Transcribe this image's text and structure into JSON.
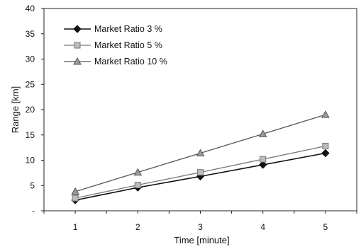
{
  "chart_data": {
    "type": "line",
    "title": "",
    "xlabel": "Time [minute]",
    "ylabel": "Range [km]",
    "x": [
      1,
      2,
      3,
      4,
      5
    ],
    "xlim": [
      0.5,
      5.5
    ],
    "ylim": [
      0,
      40
    ],
    "x_ticks": [
      "1",
      "2",
      "3",
      "4",
      "5"
    ],
    "y_ticks": [
      "-",
      "5",
      "10",
      "15",
      "20",
      "25",
      "30",
      "35",
      "40"
    ],
    "y_tick_values": [
      0,
      5,
      10,
      15,
      20,
      25,
      30,
      35,
      40
    ],
    "grid": false,
    "legend_position": "top-left",
    "series": [
      {
        "name": "Market Ratio 3 %",
        "values": [
          2.1,
          4.6,
          6.8,
          9.1,
          11.4
        ],
        "marker": "diamond",
        "color": "#111111",
        "line_style": "solid"
      },
      {
        "name": "Market Ratio 5 %",
        "values": [
          2.5,
          5.1,
          7.6,
          10.2,
          12.8
        ],
        "marker": "square",
        "color": "#777777",
        "line_style": "solid"
      },
      {
        "name": "Market Ratio 10 %",
        "values": [
          3.8,
          7.6,
          11.4,
          15.2,
          19.0
        ],
        "marker": "triangle",
        "color": "#555555",
        "line_style": "solid"
      }
    ]
  }
}
